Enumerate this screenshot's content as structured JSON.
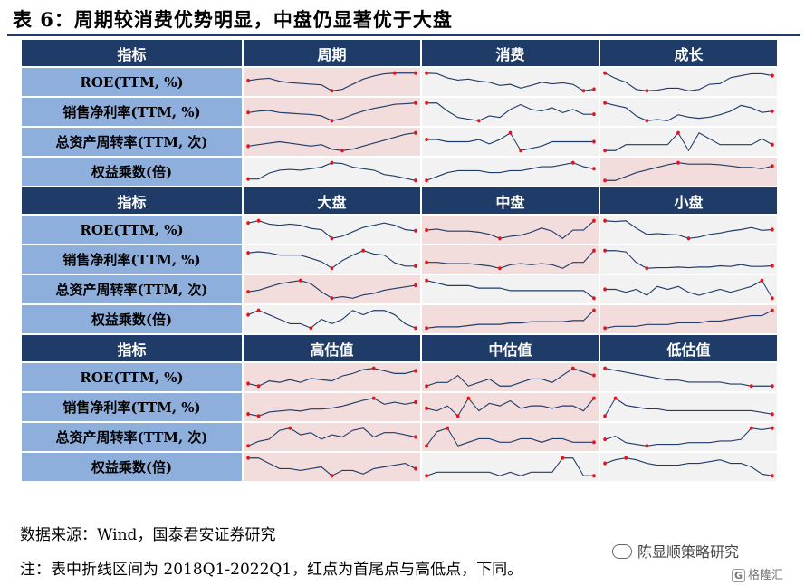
{
  "title": "表 6：周期较消费优势明显，中盘仍显著优于大盘",
  "colors": {
    "header_bg": "#1f3b68",
    "label_bg": "#8eaedc",
    "cell_bg": "#f2f2f2",
    "highlight_bg": "#f2dcdc",
    "line": "#1f3b68",
    "point": "#e0161c"
  },
  "metrics": [
    "ROE(TTM, %)",
    "销售净利率(TTM, %)",
    "总资产周转率(TTM, 次)",
    "权益乘数(倍)"
  ],
  "sections": [
    {
      "header": "指标",
      "columns": [
        "周期",
        "消费",
        "成长"
      ],
      "highlight": [
        [
          true,
          false,
          false
        ],
        [
          true,
          false,
          false
        ],
        [
          true,
          false,
          false
        ],
        [
          false,
          false,
          true
        ]
      ],
      "series": [
        [
          [
            10.4,
            10.6,
            10.7,
            10.3,
            10.1,
            10.0,
            9.9,
            9.8,
            9.0,
            9.2,
            9.9,
            10.6,
            11.0,
            11.3,
            11.4,
            11.4,
            11.4
          ],
          [
            20.6,
            20.5,
            19.7,
            19.3,
            19.5,
            19.1,
            18.9,
            18.3,
            18.5,
            17.8,
            18.3,
            18.9,
            18.6,
            18.8,
            18.5,
            17.3,
            17.6
          ],
          [
            13.0,
            12.2,
            11.6,
            10.5,
            10.3,
            10.4,
            10.7,
            10.7,
            10.3,
            10.5,
            11.3,
            11.4,
            12.3,
            12.6,
            12.9,
            12.9,
            12.6
          ]
        ],
        [
          [
            6.2,
            6.4,
            6.5,
            6.2,
            6.1,
            6.0,
            5.9,
            5.7,
            5.0,
            5.3,
            5.9,
            6.4,
            6.8,
            7.1,
            7.4,
            7.5,
            7.6
          ],
          [
            17.6,
            17.6,
            17.1,
            16.7,
            16.6,
            16.5,
            16.8,
            16.7,
            17.2,
            17.5,
            17.2,
            17.1,
            17.3,
            17.0,
            17.2,
            16.9,
            16.9
          ],
          [
            8.5,
            8.3,
            8.1,
            7.4,
            7.0,
            7.1,
            7.0,
            7.5,
            7.3,
            7.2,
            7.3,
            7.5,
            7.8,
            8.3,
            8.1,
            7.7,
            7.8
          ]
        ],
        [
          [
            0.6,
            0.61,
            0.62,
            0.63,
            0.62,
            0.61,
            0.6,
            0.61,
            0.58,
            0.57,
            0.58,
            0.6,
            0.62,
            0.64,
            0.66,
            0.68,
            0.69
          ],
          [
            0.55,
            0.55,
            0.54,
            0.54,
            0.54,
            0.55,
            0.53,
            0.55,
            0.58,
            0.5,
            0.51,
            0.52,
            0.54,
            0.54,
            0.54,
            0.54,
            0.54
          ],
          [
            0.49,
            0.49,
            0.5,
            0.5,
            0.5,
            0.5,
            0.5,
            0.52,
            0.49,
            0.52,
            0.51,
            0.5,
            0.5,
            0.5,
            0.5,
            0.51,
            0.5
          ]
        ],
        [
          [
            4.0,
            4.0,
            4.08,
            4.12,
            4.13,
            4.12,
            4.14,
            4.16,
            4.22,
            4.21,
            4.16,
            4.14,
            4.12,
            4.06,
            4.04,
            4.01,
            3.98
          ],
          [
            1.94,
            1.96,
            1.98,
            1.99,
            1.99,
            1.99,
            1.98,
            1.98,
            1.99,
            1.99,
            2.0,
            2.01,
            2.01,
            2.02,
            2.03,
            2.01,
            2.0
          ],
          [
            2.6,
            2.6,
            2.66,
            2.72,
            2.76,
            2.8,
            2.84,
            2.87,
            2.85,
            2.85,
            2.85,
            2.84,
            2.82,
            2.8,
            2.8,
            2.78,
            2.82
          ]
        ]
      ]
    },
    {
      "header": "指标",
      "columns": [
        "大盘",
        "中盘",
        "小盘"
      ],
      "highlight": [
        [
          false,
          true,
          false
        ],
        [
          false,
          true,
          false
        ],
        [
          true,
          false,
          false
        ],
        [
          false,
          true,
          true
        ]
      ],
      "series": [
        [
          [
            11.6,
            11.8,
            11.5,
            11.4,
            11.5,
            11.4,
            11.1,
            11.0,
            10.2,
            10.4,
            10.8,
            11.2,
            11.4,
            11.6,
            11.4,
            11.0,
            10.9
          ],
          [
            8.5,
            8.6,
            8.4,
            8.4,
            8.4,
            8.3,
            8.1,
            7.7,
            7.9,
            8.0,
            8.3,
            8.7,
            8.4,
            7.7,
            8.5,
            8.5,
            9.4
          ],
          [
            8.4,
            8.3,
            8.4,
            7.3,
            6.4,
            6.5,
            6.4,
            6.3,
            5.8,
            6.0,
            6.4,
            6.6,
            6.9,
            7.1,
            7.4,
            7.0,
            7.1
          ]
        ],
        [
          [
            12.4,
            12.5,
            12.4,
            12.2,
            12.2,
            12.2,
            11.9,
            11.6,
            11.0,
            11.7,
            12.2,
            12.6,
            12.3,
            12.2,
            11.5,
            11.2,
            11.2
          ],
          [
            6.4,
            6.4,
            6.3,
            6.3,
            6.3,
            6.2,
            6.1,
            5.9,
            6.2,
            6.3,
            6.2,
            6.3,
            6.2,
            5.9,
            6.4,
            6.4,
            7.4
          ],
          [
            6.9,
            6.9,
            6.7,
            5.0,
            4.1,
            4.2,
            4.2,
            4.3,
            4.2,
            4.3,
            4.3,
            4.5,
            4.4,
            4.7,
            4.4,
            4.4,
            4.5
          ]
        ],
        [
          [
            0.105,
            0.106,
            0.108,
            0.11,
            0.111,
            0.112,
            0.11,
            0.105,
            0.101,
            0.102,
            0.101,
            0.103,
            0.104,
            0.106,
            0.107,
            0.108,
            0.109
          ],
          [
            0.79,
            0.78,
            0.77,
            0.77,
            0.77,
            0.76,
            0.76,
            0.76,
            0.75,
            0.75,
            0.75,
            0.75,
            0.75,
            0.75,
            0.75,
            0.75,
            0.72
          ],
          [
            0.65,
            0.65,
            0.64,
            0.65,
            0.63,
            0.66,
            0.65,
            0.66,
            0.64,
            0.63,
            0.64,
            0.65,
            0.64,
            0.65,
            0.66,
            0.68,
            0.62
          ]
        ],
        [
          [
            8.8,
            8.9,
            8.8,
            8.7,
            8.6,
            8.6,
            8.5,
            8.7,
            8.6,
            8.7,
            8.9,
            8.8,
            8.9,
            8.9,
            8.8,
            8.6,
            8.5
          ],
          [
            2.5,
            2.51,
            2.51,
            2.51,
            2.52,
            2.53,
            2.53,
            2.53,
            2.54,
            2.54,
            2.55,
            2.55,
            2.55,
            2.55,
            2.56,
            2.56,
            2.64
          ],
          [
            2.2,
            2.21,
            2.21,
            2.21,
            2.22,
            2.22,
            2.22,
            2.23,
            2.23,
            2.23,
            2.24,
            2.24,
            2.25,
            2.26,
            2.27,
            2.27,
            2.3
          ]
        ]
      ]
    },
    {
      "header": "指标",
      "columns": [
        "高估值",
        "中估值",
        "低估值"
      ],
      "highlight": [
        [
          true,
          true,
          false
        ],
        [
          true,
          true,
          false
        ],
        [
          true,
          true,
          false
        ],
        [
          true,
          false,
          false
        ]
      ],
      "series": [
        [
          [
            7.8,
            7.6,
            8.0,
            7.9,
            8.1,
            7.9,
            8.2,
            8.1,
            8.0,
            8.4,
            8.6,
            8.9,
            9.0,
            8.8,
            8.6,
            8.6,
            8.8
          ],
          [
            9.6,
            9.7,
            9.7,
            9.9,
            9.6,
            9.7,
            9.8,
            9.6,
            9.6,
            9.7,
            9.8,
            9.8,
            9.7,
            9.9,
            10.1,
            10.0,
            9.9
          ],
          [
            12.6,
            12.5,
            12.4,
            12.3,
            12.2,
            12.1,
            12.0,
            12.0,
            11.9,
            11.9,
            11.9,
            11.9,
            11.8,
            11.8,
            11.7,
            11.7,
            11.7
          ]
        ],
        [
          [
            9.2,
            9.0,
            9.4,
            9.5,
            9.6,
            9.5,
            9.7,
            9.7,
            9.8,
            10.0,
            10.3,
            10.6,
            10.8,
            10.2,
            10.4,
            10.2,
            10.4
          ],
          [
            10.2,
            10.1,
            10.3,
            9.9,
            10.6,
            10.1,
            10.4,
            10.3,
            10.5,
            10.2,
            10.3,
            10.3,
            10.2,
            10.3,
            10.3,
            10.1,
            10.6
          ],
          [
            10.5,
            11.5,
            11.1,
            11.0,
            10.9,
            10.9,
            10.8,
            10.8,
            10.8,
            10.8,
            10.8,
            10.8,
            10.8,
            10.8,
            10.8,
            10.7,
            10.6
          ]
        ],
        [
          [
            0.52,
            0.54,
            0.55,
            0.59,
            0.6,
            0.57,
            0.58,
            0.55,
            0.57,
            0.56,
            0.59,
            0.6,
            0.56,
            0.58,
            0.58,
            0.57,
            0.56
          ],
          [
            0.55,
            0.59,
            0.6,
            0.55,
            0.56,
            0.57,
            0.57,
            0.56,
            0.56,
            0.57,
            0.57,
            0.56,
            0.57,
            0.57,
            0.56,
            0.56,
            0.56
          ],
          [
            0.73,
            0.75,
            0.71,
            0.7,
            0.69,
            0.7,
            0.7,
            0.7,
            0.71,
            0.71,
            0.71,
            0.72,
            0.72,
            0.73,
            0.8,
            0.79,
            0.8
          ]
        ],
        [
          [
            2.62,
            2.62,
            2.59,
            2.56,
            2.56,
            2.55,
            2.56,
            2.57,
            2.52,
            2.55,
            2.55,
            2.53,
            2.56,
            2.57,
            2.58,
            2.59,
            2.56
          ],
          [
            2.1,
            2.11,
            2.11,
            2.11,
            2.11,
            2.11,
            2.11,
            2.1,
            2.11,
            2.1,
            2.11,
            2.11,
            2.11,
            2.15,
            2.15,
            2.1,
            2.1
          ],
          [
            3.92,
            3.94,
            3.95,
            3.94,
            3.92,
            3.91,
            3.91,
            3.91,
            3.92,
            3.92,
            3.93,
            3.94,
            3.92,
            3.92,
            3.9,
            3.86,
            3.85
          ]
        ]
      ]
    }
  ],
  "source": "数据来源：Wind，国泰君安证券研究",
  "note": "注：表中折线区间为 2018Q1-2022Q1，红点为首尾点与高低点，下同。",
  "watermark": {
    "account": "陈显顺策略研究",
    "site": "格隆汇"
  }
}
